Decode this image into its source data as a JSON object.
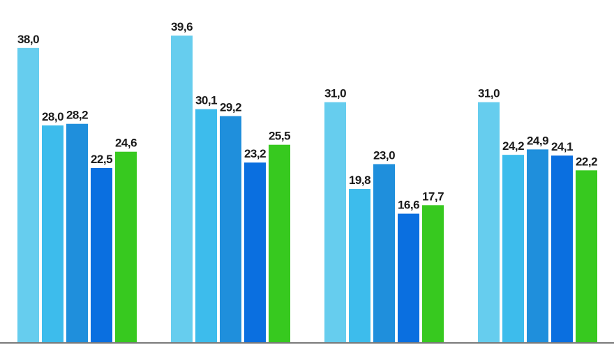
{
  "chart_data": {
    "type": "bar",
    "categories": [
      "",
      "",
      "",
      ""
    ],
    "series": [
      {
        "color": "#66cdee",
        "values": [
          38.0,
          39.6,
          31.0,
          31.0
        ]
      },
      {
        "color": "#3dbcec",
        "values": [
          28.0,
          30.1,
          19.8,
          24.2
        ]
      },
      {
        "color": "#1f8fdc",
        "values": [
          28.2,
          29.2,
          23.0,
          24.9
        ]
      },
      {
        "color": "#0a6fe0",
        "values": [
          22.5,
          23.2,
          16.6,
          24.1
        ]
      },
      {
        "color": "#37c91f",
        "values": [
          24.6,
          25.5,
          17.7,
          22.2
        ]
      }
    ],
    "data_labels": [
      [
        "38,0",
        "39,6",
        "31,0",
        "31,0"
      ],
      [
        "28,0",
        "30,1",
        "19,8",
        "24,2"
      ],
      [
        "28,2",
        "29,2",
        "23,0",
        "24,9"
      ],
      [
        "22,5",
        "23,2",
        "16,6",
        "24,1"
      ],
      [
        "24,6",
        "25,5",
        "17,7",
        "22,2"
      ]
    ],
    "ylim": [
      0,
      40
    ],
    "grid": false,
    "legend": "none",
    "axis_color": "#7a7a7a"
  }
}
